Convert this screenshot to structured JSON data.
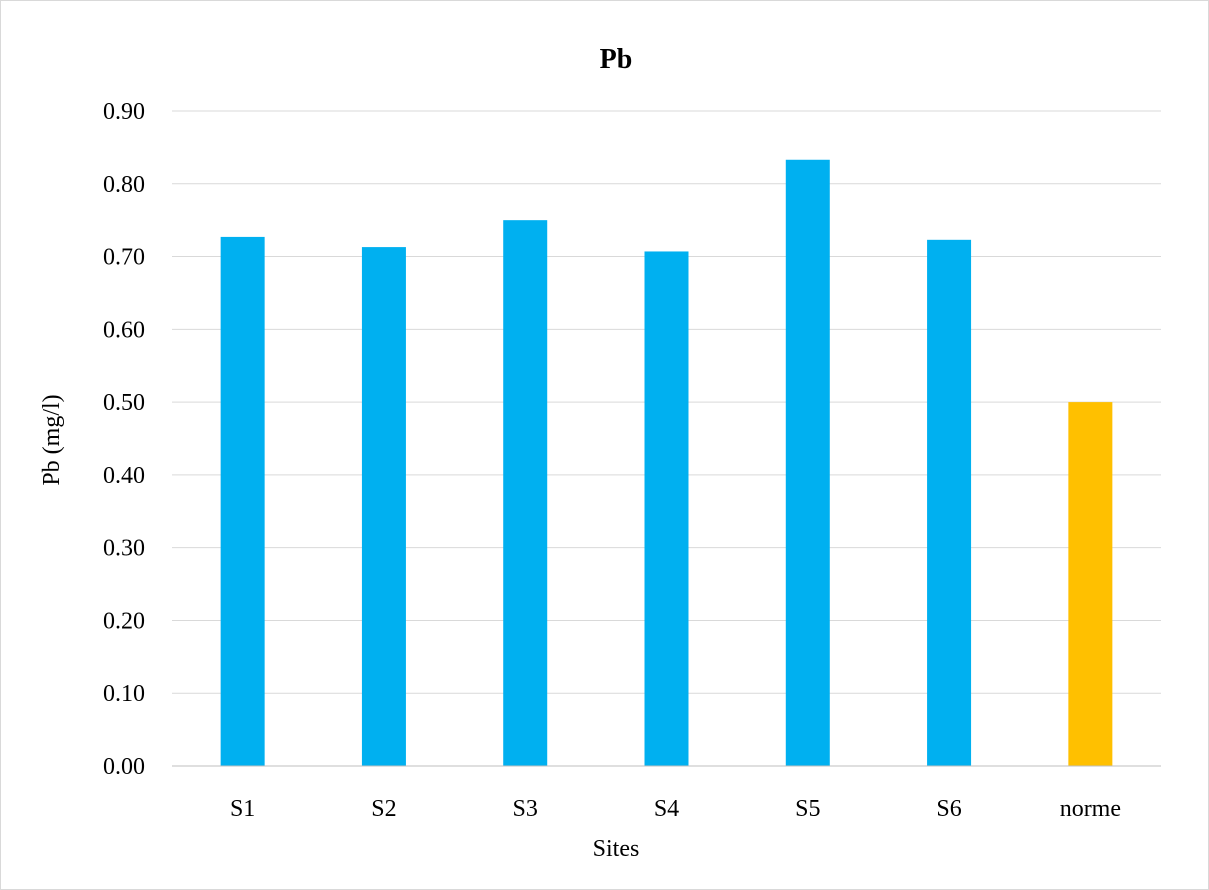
{
  "chart_data": {
    "type": "bar",
    "title": "Pb",
    "xlabel": "Sites",
    "ylabel": "Pb (mg/l)",
    "categories": [
      "S1",
      "S2",
      "S3",
      "S4",
      "S5",
      "S6",
      "norme"
    ],
    "values": [
      0.727,
      0.713,
      0.75,
      0.707,
      0.833,
      0.723,
      0.5
    ],
    "bar_colors": [
      "#00B0F0",
      "#00B0F0",
      "#00B0F0",
      "#00B0F0",
      "#00B0F0",
      "#00B0F0",
      "#FFC000"
    ],
    "ylim": [
      0,
      0.9
    ],
    "yticks": [
      "0.00",
      "0.10",
      "0.20",
      "0.30",
      "0.40",
      "0.50",
      "0.60",
      "0.70",
      "0.80",
      "0.90"
    ],
    "grid": true,
    "legend": "none"
  }
}
